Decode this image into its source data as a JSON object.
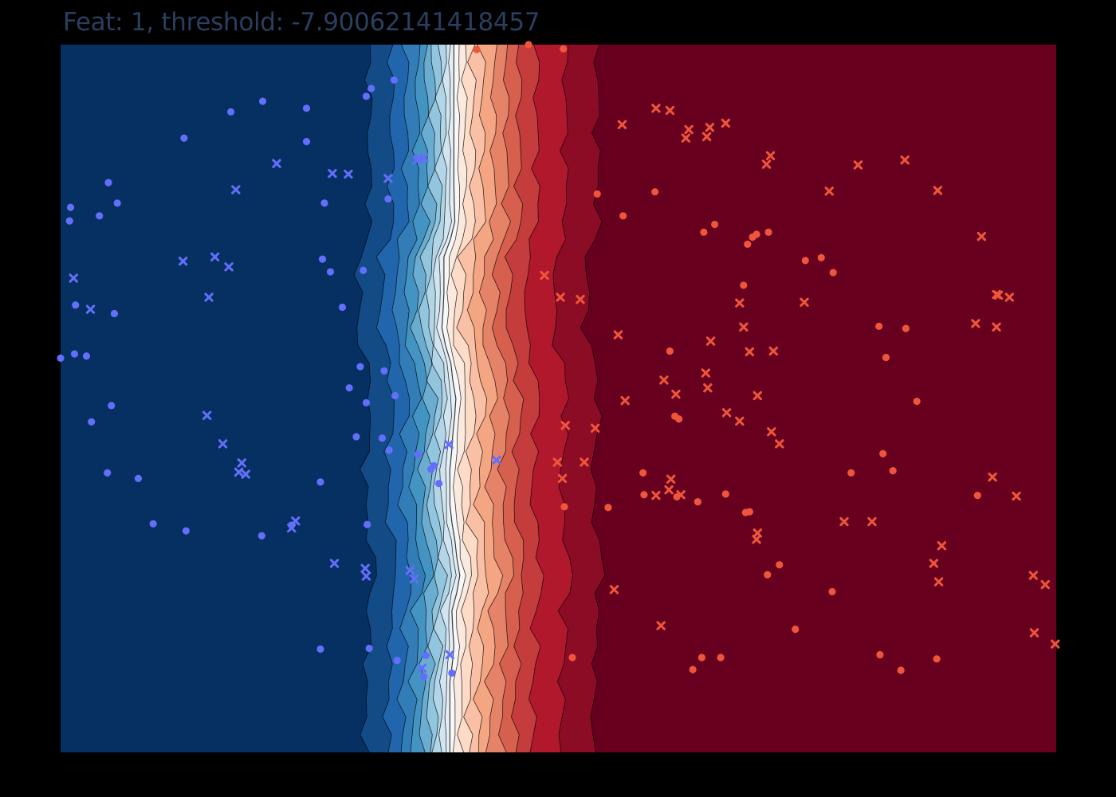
{
  "chart_data": {
    "type": "contour",
    "title": "Feat: 1, threshold: -7.90062141418457",
    "xlabel": "",
    "ylabel": "",
    "xlim": [
      0,
      100
    ],
    "ylim": [
      0,
      100
    ],
    "grid": false,
    "colorscale": [
      "#053061",
      "#2166ac",
      "#4393c3",
      "#92c5de",
      "#d1e5f0",
      "#f7f7f7",
      "#fddbc7",
      "#f4a582",
      "#d6604d",
      "#b2182b",
      "#67001f"
    ],
    "boundary_profile": {
      "y": [
        100,
        95,
        90,
        85,
        80,
        75,
        70,
        65,
        60,
        55,
        50,
        45,
        40,
        35,
        30,
        25,
        20,
        15,
        10,
        5,
        0
      ],
      "x": [
        39.5,
        39.5,
        39.5,
        39.5,
        39.5,
        39.6,
        38.5,
        38.5,
        38.3,
        39.2,
        39.7,
        39.4,
        39.1,
        39.1,
        39.6,
        40.1,
        39.3,
        39.5,
        39.1,
        39.1,
        39.1
      ]
    },
    "series": [
      {
        "name": "",
        "marker": "circle",
        "color": "#636efa",
        "x": [
          30.7,
          31.2,
          33.5,
          20.3,
          24.7,
          17.1,
          24.7,
          12.4,
          5.7,
          4.8,
          1.0,
          0.9,
          3.9,
          26.5,
          32.9,
          26.3,
          27.1,
          30.4,
          28.3,
          5.4,
          1.5,
          0.0,
          1.4,
          2.6,
          30.1,
          32.5,
          30.7,
          29.7,
          32.3,
          33.0,
          35.9,
          37.2,
          37.5,
          38.0,
          26.1,
          29.0,
          33.6,
          3.1,
          5.1,
          4.7,
          7.8,
          9.3,
          23.2,
          30.8,
          12.6,
          20.2,
          26.1,
          31.0,
          33.8,
          36.7,
          39.3,
          36.5
        ],
        "y": [
          92.7,
          93.8,
          95.0,
          92.0,
          91.0,
          90.5,
          86.3,
          86.8,
          77.6,
          80.5,
          77.0,
          75.1,
          75.8,
          77.6,
          78.2,
          69.7,
          67.9,
          68.1,
          62.9,
          62.0,
          63.2,
          55.7,
          56.3,
          56.0,
          54.5,
          53.9,
          49.4,
          44.6,
          44.4,
          42.7,
          42.1,
          40.0,
          40.5,
          38.0,
          38.2,
          51.5,
          50.4,
          46.7,
          49.0,
          39.5,
          38.7,
          32.3,
          32.1,
          32.2,
          31.3,
          30.6,
          14.6,
          14.7,
          13.0,
          13.7,
          11.2,
          10.7
        ]
      },
      {
        "name": "",
        "marker": "x",
        "color": "#636efa",
        "x": [
          32.9,
          27.3,
          28.9,
          21.7,
          17.6,
          1.3,
          12.3,
          3.0,
          15.5,
          16.9,
          14.9,
          36.5,
          36.0,
          35.8,
          14.7,
          16.3,
          18.2,
          17.9,
          18.6,
          23.6,
          23.2,
          27.5,
          30.6,
          30.7,
          35.1,
          35.5,
          36.3,
          43.8,
          39.0,
          39.1
        ],
        "y": [
          81.1,
          81.8,
          81.7,
          83.2,
          79.5,
          67.0,
          69.4,
          62.6,
          70.0,
          68.6,
          64.3,
          84.0,
          83.9,
          83.7,
          47.6,
          43.6,
          40.9,
          39.6,
          39.3,
          32.7,
          31.7,
          26.7,
          26.0,
          24.9,
          25.7,
          24.5,
          11.9,
          41.3,
          43.5,
          13.8
        ]
      },
      {
        "name": "",
        "marker": "circle",
        "color": "#ef553b",
        "x": [
          47.0,
          41.8,
          50.5,
          59.7,
          56.5,
          53.9,
          65.7,
          64.6,
          69.0,
          69.9,
          69.5,
          71.1,
          74.8,
          76.4,
          77.6,
          68.6,
          61.2,
          82.2,
          84.9,
          82.9,
          61.7,
          62.1,
          82.6,
          83.6,
          86.0,
          58.5,
          61.9,
          64.0,
          69.2,
          68.8,
          66.8,
          55.0,
          50.6,
          71.0,
          51.4,
          58.6,
          77.5,
          73.8,
          82.3,
          84.4,
          88.0,
          79.4,
          92.1,
          63.5,
          64.4,
          66.3,
          72.2
        ],
        "y": [
          100.0,
          99.3,
          99.4,
          79.2,
          75.8,
          78.9,
          74.6,
          73.5,
          71.8,
          73.2,
          72.8,
          73.5,
          69.5,
          69.9,
          67.8,
          66.0,
          56.7,
          60.2,
          59.9,
          55.8,
          47.5,
          47.1,
          42.2,
          39.8,
          49.6,
          39.5,
          36.1,
          35.4,
          34.0,
          33.9,
          36.5,
          34.6,
          34.7,
          25.1,
          13.4,
          36.4,
          22.7,
          17.4,
          13.8,
          11.6,
          13.2,
          39.5,
          36.3,
          11.7,
          13.4,
          13.4,
          26.5
        ]
      },
      {
        "name": "",
        "marker": "x",
        "color": "#ef553b",
        "x": [
          61.2,
          56.4,
          59.8,
          63.1,
          65.2,
          66.8,
          64.9,
          62.8,
          71.3,
          77.2,
          88.1,
          70.9,
          80.1,
          84.8,
          92.5,
          94.0,
          91.9,
          94.0,
          95.3,
          94.2,
          74.7,
          68.2,
          65.3,
          56.0,
          52.2,
          50.2,
          48.6,
          68.6,
          71.6,
          69.2,
          70.0,
          66.9,
          71.4,
          72.2,
          53.7,
          56.7,
          60.6,
          61.8,
          64.8,
          65.0,
          60.3,
          88.5,
          88.2,
          87.7,
          81.5,
          78.7,
          62.3,
          70.0,
          69.9,
          59.8,
          61.1,
          61.3,
          68.2,
          50.7,
          49.9,
          50.4,
          52.6,
          55.6,
          93.6,
          96.0,
          97.7,
          98.9,
          97.8,
          99.9
        ],
        "y": [
          90.7,
          88.7,
          91.0,
          88.0,
          88.3,
          88.9,
          87.0,
          86.8,
          84.3,
          79.3,
          79.4,
          83.1,
          83.0,
          83.7,
          72.9,
          64.7,
          60.6,
          60.1,
          64.3,
          64.6,
          63.6,
          63.5,
          58.1,
          59.0,
          64.0,
          64.3,
          67.4,
          60.1,
          56.7,
          56.6,
          50.4,
          48.0,
          45.3,
          43.6,
          45.8,
          49.7,
          52.6,
          50.6,
          53.6,
          51.5,
          17.9,
          29.2,
          24.1,
          26.7,
          32.6,
          32.6,
          36.4,
          31.0,
          30.1,
          36.3,
          37.1,
          38.6,
          46.8,
          46.2,
          41.0,
          38.7,
          41.0,
          23.0,
          38.9,
          36.2,
          25.0,
          23.7,
          16.9,
          15.3
        ]
      }
    ]
  }
}
